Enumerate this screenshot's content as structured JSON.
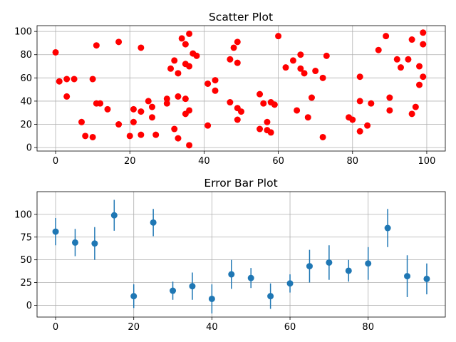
{
  "chart_data": [
    {
      "type": "scatter",
      "title": "Scatter Plot",
      "xlabel": "",
      "ylabel": "",
      "xlim": [
        -5,
        105
      ],
      "ylim": [
        -3,
        105
      ],
      "xticks": [
        0,
        20,
        40,
        60,
        80,
        100
      ],
      "yticks": [
        0,
        20,
        40,
        60,
        80,
        100
      ],
      "grid": true,
      "marker_color": "#ff0000",
      "points": [
        [
          0,
          82
        ],
        [
          1,
          57
        ],
        [
          3,
          44
        ],
        [
          3,
          59
        ],
        [
          5,
          59
        ],
        [
          7,
          22
        ],
        [
          8,
          10
        ],
        [
          10,
          9
        ],
        [
          10,
          59
        ],
        [
          11,
          88
        ],
        [
          11,
          38
        ],
        [
          12,
          38
        ],
        [
          14,
          33
        ],
        [
          17,
          91
        ],
        [
          17,
          20
        ],
        [
          20,
          10
        ],
        [
          21,
          33
        ],
        [
          21,
          22
        ],
        [
          23,
          86
        ],
        [
          23,
          31
        ],
        [
          23,
          11
        ],
        [
          25,
          40
        ],
        [
          26,
          35
        ],
        [
          26,
          26
        ],
        [
          27,
          11
        ],
        [
          30,
          42
        ],
        [
          30,
          38
        ],
        [
          31,
          68
        ],
        [
          32,
          75
        ],
        [
          32,
          16
        ],
        [
          33,
          64
        ],
        [
          33,
          44
        ],
        [
          33,
          8
        ],
        [
          34,
          94
        ],
        [
          35,
          89
        ],
        [
          35,
          72
        ],
        [
          35,
          42
        ],
        [
          35,
          29
        ],
        [
          36,
          98
        ],
        [
          36,
          70
        ],
        [
          36,
          32
        ],
        [
          36,
          2
        ],
        [
          37,
          81
        ],
        [
          38,
          79
        ],
        [
          41,
          55
        ],
        [
          41,
          19
        ],
        [
          43,
          58
        ],
        [
          43,
          49
        ],
        [
          47,
          76
        ],
        [
          47,
          39
        ],
        [
          48,
          86
        ],
        [
          49,
          91
        ],
        [
          49,
          73
        ],
        [
          49,
          34
        ],
        [
          49,
          24
        ],
        [
          50,
          31
        ],
        [
          55,
          46
        ],
        [
          55,
          16
        ],
        [
          56,
          38
        ],
        [
          57,
          22
        ],
        [
          57,
          15
        ],
        [
          58,
          39
        ],
        [
          58,
          13
        ],
        [
          59,
          37
        ],
        [
          60,
          96
        ],
        [
          62,
          69
        ],
        [
          64,
          75
        ],
        [
          65,
          32
        ],
        [
          66,
          80
        ],
        [
          66,
          68
        ],
        [
          67,
          64
        ],
        [
          68,
          26
        ],
        [
          69,
          43
        ],
        [
          70,
          66
        ],
        [
          72,
          60
        ],
        [
          72,
          9
        ],
        [
          73,
          79
        ],
        [
          79,
          26
        ],
        [
          80,
          24
        ],
        [
          82,
          61
        ],
        [
          82,
          40
        ],
        [
          82,
          14
        ],
        [
          84,
          19
        ],
        [
          85,
          38
        ],
        [
          87,
          84
        ],
        [
          89,
          96
        ],
        [
          90,
          43
        ],
        [
          90,
          32
        ],
        [
          92,
          76
        ],
        [
          93,
          69
        ],
        [
          95,
          76
        ],
        [
          96,
          93
        ],
        [
          96,
          29
        ],
        [
          97,
          35
        ],
        [
          98,
          70
        ],
        [
          98,
          54
        ],
        [
          99,
          99
        ],
        [
          99,
          89
        ],
        [
          99,
          61
        ]
      ]
    },
    {
      "type": "errorbar",
      "title": "Error Bar Plot",
      "xlabel": "",
      "ylabel": "",
      "xlim": [
        -4.75,
        99.75
      ],
      "ylim": [
        -13,
        125
      ],
      "xticks": [
        0,
        20,
        40,
        60,
        80
      ],
      "yticks": [
        0,
        25,
        50,
        75,
        100
      ],
      "grid": true,
      "marker_color": "#1f77b4",
      "x": [
        0,
        5,
        10,
        15,
        20,
        25,
        30,
        35,
        40,
        45,
        50,
        55,
        60,
        65,
        70,
        75,
        80,
        85,
        90,
        95
      ],
      "y": [
        81,
        69,
        68,
        99,
        10,
        91,
        16,
        21,
        7,
        34,
        30,
        10,
        24,
        43,
        47,
        38,
        46,
        85,
        32,
        29
      ],
      "yerr": [
        15,
        15,
        18,
        17,
        13,
        15,
        10,
        15,
        16,
        16,
        11,
        14,
        10,
        18,
        19,
        12,
        18,
        21,
        23,
        17
      ]
    }
  ]
}
